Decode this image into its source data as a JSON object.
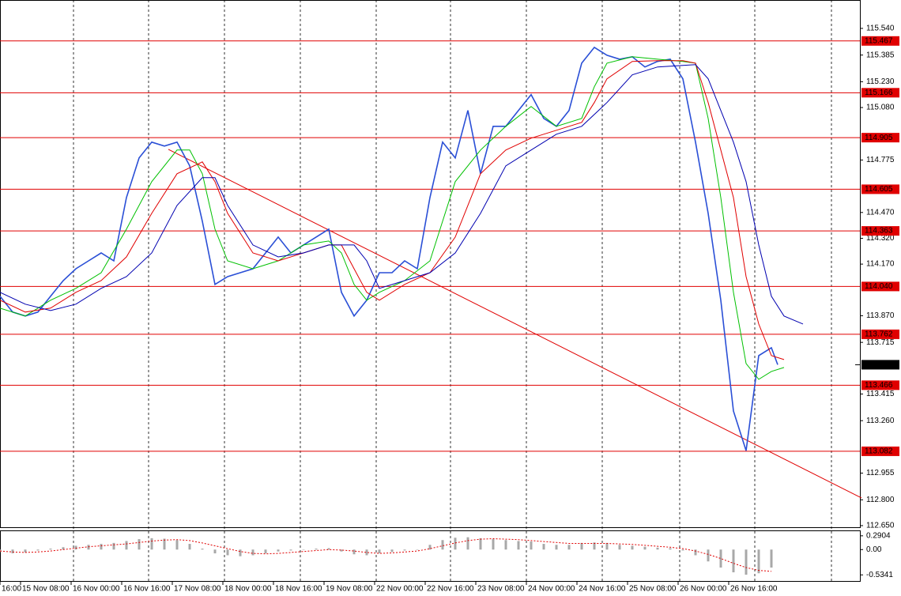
{
  "chart_data": [
    {
      "type": "line",
      "xlim": [
        0,
        272
      ],
      "ylim": [
        112.636,
        115.705
      ],
      "yticks": [
        {
          "value": 115.54,
          "label": "115.540"
        },
        115.385,
        {
          "value": 115.23,
          "label": "115.230"
        },
        {
          "value": 115.08,
          "label": "115.080"
        },
        114.775,
        {
          "value": 114.47,
          "label": "114.470"
        },
        {
          "value": 114.32,
          "label": "114.320"
        },
        {
          "value": 114.17,
          "label": "114.170"
        },
        {
          "value": 113.87,
          "label": "113.870"
        },
        113.715,
        113.415,
        {
          "value": 113.26,
          "label": "113.260"
        },
        112.955,
        {
          "value": 112.8,
          "label": "112.800"
        },
        {
          "value": 112.65,
          "label": "112.650"
        }
      ],
      "xticks": [
        {
          "value": 0,
          "label": "16:00"
        },
        {
          "value": 6.5,
          "label": "15 Nov 08:00"
        },
        {
          "value": 22.5,
          "label": "16 Nov 00:00"
        },
        {
          "value": 38.5,
          "label": "16 Nov 16:00"
        },
        {
          "value": 54.5,
          "label": "17 Nov 08:00"
        },
        {
          "value": 70.5,
          "label": "18 Nov 00:00"
        },
        {
          "value": 86.5,
          "label": "18 Nov 16:00"
        },
        {
          "value": 102.5,
          "label": "19 Nov 08:00"
        },
        {
          "value": 118.5,
          "label": "22 Nov 00:00"
        },
        {
          "value": 134.5,
          "label": "22 Nov 16:00"
        },
        {
          "value": 150.5,
          "label": "23 Nov 08:00"
        },
        {
          "value": 166.5,
          "label": "24 Nov 00:00"
        },
        {
          "value": 182.5,
          "label": "24 Nov 16:00"
        },
        {
          "value": 198.5,
          "label": "25 Nov 08:00"
        },
        {
          "value": 214.5,
          "label": "26 Nov 00:00"
        },
        {
          "value": 230.5,
          "label": "26 Nov 16:00"
        }
      ],
      "xgrid": [
        23.25,
        47,
        71,
        95,
        119,
        142.5,
        166.5,
        190.5,
        215,
        238.75,
        263
      ],
      "series": [
        {
          "color": "#2a4fd6",
          "x": [
            0,
            4,
            8,
            12,
            16,
            20,
            24,
            28,
            32,
            36,
            40,
            44,
            48,
            52,
            56,
            60,
            64,
            68,
            72,
            76,
            80,
            84,
            88,
            92,
            96,
            100,
            104,
            108,
            112,
            116,
            120,
            124,
            128,
            132,
            136,
            140,
            144,
            148,
            152,
            156,
            160,
            164,
            168,
            172,
            176,
            180,
            184,
            188,
            192,
            196,
            200,
            204,
            208,
            212,
            216,
            220,
            224,
            228,
            232,
            236,
            240,
            244,
            246
          ],
          "values": [
            113.983,
            113.891,
            113.868,
            113.891,
            113.983,
            114.074,
            114.143,
            114.189,
            114.235,
            114.189,
            114.557,
            114.787,
            114.879,
            114.856,
            114.879,
            114.741,
            114.419,
            114.052,
            114.097,
            114.12,
            114.143,
            114.235,
            114.327,
            114.235,
            114.281,
            114.327,
            114.373,
            114.006,
            113.868,
            113.96,
            114.12,
            114.12,
            114.189,
            114.143,
            114.557,
            114.879,
            114.787,
            115.063,
            114.695,
            114.971,
            114.971,
            115.063,
            115.155,
            115.017,
            114.971,
            115.063,
            115.338,
            115.43,
            115.384,
            115.361,
            115.375,
            115.316,
            115.348,
            115.361,
            115.247,
            114.879,
            114.465,
            113.96,
            113.316,
            113.086,
            113.638,
            113.684,
            113.585
          ]
        },
        {
          "color": "#00c000",
          "x": [
            0,
            8,
            16,
            24,
            32,
            40,
            48,
            56,
            60,
            64,
            68,
            72,
            80,
            88,
            96,
            104,
            108,
            112,
            116,
            120,
            128,
            136,
            144,
            152,
            160,
            168,
            176,
            184,
            188,
            192,
            200,
            208,
            216,
            220,
            224,
            228,
            232,
            236,
            240,
            244,
            248
          ],
          "values": [
            113.914,
            113.868,
            113.96,
            114.029,
            114.12,
            114.373,
            114.649,
            114.833,
            114.833,
            114.695,
            114.373,
            114.189,
            114.143,
            114.189,
            114.281,
            114.304,
            114.235,
            114.052,
            113.96,
            114.006,
            114.074,
            114.189,
            114.649,
            114.833,
            114.971,
            115.086,
            114.971,
            115.017,
            115.201,
            115.338,
            115.375,
            115.361,
            115.348,
            115.338,
            115.017,
            114.557,
            114.006,
            113.592,
            113.5,
            113.546,
            113.569
          ]
        },
        {
          "color": "#e00000",
          "x": [
            0,
            8,
            16,
            24,
            32,
            40,
            48,
            56,
            64,
            68,
            72,
            80,
            88,
            96,
            104,
            108,
            112,
            116,
            120,
            128,
            136,
            144,
            152,
            160,
            168,
            176,
            184,
            188,
            192,
            200,
            208,
            216,
            220,
            224,
            232,
            236,
            240,
            244,
            248
          ],
          "values": [
            113.96,
            113.891,
            113.914,
            114.006,
            114.074,
            114.212,
            114.465,
            114.695,
            114.764,
            114.649,
            114.465,
            114.235,
            114.189,
            114.235,
            114.281,
            114.281,
            114.143,
            114.006,
            113.96,
            114.052,
            114.12,
            114.327,
            114.695,
            114.833,
            114.902,
            114.948,
            114.994,
            115.109,
            115.247,
            115.348,
            115.352,
            115.352,
            115.338,
            115.109,
            114.557,
            114.097,
            113.822,
            113.638,
            113.615
          ]
        },
        {
          "color": "#0000b0",
          "x": [
            0,
            8,
            16,
            24,
            32,
            40,
            48,
            56,
            64,
            68,
            72,
            80,
            88,
            96,
            104,
            112,
            116,
            120,
            128,
            136,
            144,
            152,
            160,
            168,
            176,
            184,
            192,
            200,
            208,
            216,
            220,
            224,
            232,
            236,
            240,
            244,
            248,
            254
          ],
          "values": [
            114.006,
            113.937,
            113.9,
            113.937,
            114.029,
            114.097,
            114.235,
            114.511,
            114.672,
            114.672,
            114.511,
            114.281,
            114.212,
            114.235,
            114.281,
            114.281,
            114.189,
            114.029,
            114.074,
            114.12,
            114.235,
            114.465,
            114.741,
            114.833,
            114.925,
            114.971,
            115.109,
            115.27,
            115.316,
            115.325,
            115.329,
            115.247,
            114.879,
            114.649,
            114.281,
            113.983,
            113.868,
            113.822
          ]
        }
      ],
      "trendline": {
        "color": "#e00000",
        "x": [
          53.25,
          272.5
        ],
        "values": [
          114.837,
          112.811
        ]
      },
      "level_color": "#e00000",
      "levels": [
        115.467,
        115.166,
        114.905,
        114.605,
        114.363,
        {
          "value": 114.04,
          "label": "114.040"
        },
        113.762,
        113.466,
        113.082
      ],
      "current": 113.585
    },
    {
      "type": "bar",
      "xlim": [
        0,
        272
      ],
      "ylim": [
        -0.663,
        0.388
      ],
      "yticks": [
        0.2904,
        {
          "value": 0,
          "label": "0.00"
        },
        -0.5341
      ],
      "color": "#a8a8a8",
      "x": [
        0,
        4,
        8,
        12,
        16,
        20,
        24,
        28,
        32,
        36,
        40,
        44,
        48,
        52,
        56,
        60,
        64,
        68,
        72,
        76,
        80,
        84,
        88,
        92,
        96,
        100,
        104,
        108,
        112,
        116,
        120,
        124,
        128,
        132,
        136,
        140,
        144,
        148,
        152,
        156,
        160,
        164,
        168,
        172,
        176,
        180,
        184,
        188,
        192,
        196,
        200,
        204,
        208,
        212,
        216,
        220,
        224,
        228,
        232,
        236,
        240,
        244
      ],
      "values": [
        -0.05,
        -0.08,
        -0.06,
        -0.02,
        0.02,
        0.05,
        0.08,
        0.1,
        0.12,
        0.14,
        0.18,
        0.22,
        0.24,
        0.23,
        0.2,
        0.12,
        0.02,
        -0.08,
        -0.12,
        -0.14,
        -0.12,
        -0.08,
        -0.04,
        -0.02,
        0,
        0.02,
        0.03,
        -0.04,
        -0.1,
        -0.12,
        -0.08,
        -0.05,
        -0.02,
        0,
        0.1,
        0.2,
        0.25,
        0.26,
        0.24,
        0.22,
        0.2,
        0.18,
        0.17,
        0.12,
        0.1,
        0.1,
        0.14,
        0.15,
        0.14,
        0.1,
        0.08,
        0.06,
        0.04,
        0.03,
        -0.02,
        -0.12,
        -0.25,
        -0.38,
        -0.48,
        -0.53,
        -0.5,
        -0.38
      ],
      "signal": {
        "color": "#e00000",
        "values": [
          -0.03,
          -0.05,
          -0.06,
          -0.05,
          -0.03,
          0,
          0.03,
          0.06,
          0.08,
          0.1,
          0.12,
          0.15,
          0.18,
          0.2,
          0.21,
          0.19,
          0.14,
          0.08,
          0.02,
          -0.04,
          -0.08,
          -0.09,
          -0.08,
          -0.06,
          -0.04,
          -0.02,
          0,
          -0.01,
          -0.03,
          -0.06,
          -0.08,
          -0.07,
          -0.05,
          -0.03,
          0.02,
          0.08,
          0.14,
          0.19,
          0.22,
          0.23,
          0.22,
          0.21,
          0.19,
          0.17,
          0.15,
          0.13,
          0.13,
          0.13,
          0.13,
          0.12,
          0.11,
          0.09,
          0.07,
          0.05,
          0.02,
          -0.03,
          -0.1,
          -0.19,
          -0.29,
          -0.38,
          -0.44,
          -0.46
        ]
      }
    }
  ]
}
